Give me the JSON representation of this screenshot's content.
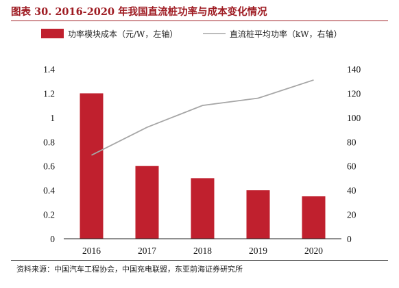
{
  "title": "图表 30. 2016-2020 年我国直流桩功率与成本变化情况",
  "source": "资料来源：中国汽车工程协会，中国充电联盟，东亚前海证券研究所",
  "colors": {
    "bar": "#c0202e",
    "line": "#a6a6a6",
    "title": "#9e1b22"
  },
  "chart_data": {
    "type": "bar+line",
    "categories": [
      "2016",
      "2017",
      "2018",
      "2019",
      "2020"
    ],
    "series": [
      {
        "name": "功率模块成本（元/W，左轴）",
        "type": "bar",
        "axis": "left",
        "values": [
          1.2,
          0.6,
          0.5,
          0.4,
          0.35
        ]
      },
      {
        "name": "直流桩平均功率（kW，右轴）",
        "type": "line",
        "axis": "right",
        "values": [
          69,
          92,
          110,
          116,
          131
        ]
      }
    ],
    "y_left": {
      "min": 0,
      "max": 1.4,
      "ticks": [
        "0",
        "0.2",
        "0.4",
        "0.6",
        "0.8",
        "1",
        "1.2",
        "1.4"
      ]
    },
    "y_right": {
      "min": 0,
      "max": 140,
      "ticks": [
        "0",
        "20",
        "40",
        "60",
        "80",
        "100",
        "120",
        "140"
      ]
    },
    "legend_position": "top",
    "grid": false
  }
}
